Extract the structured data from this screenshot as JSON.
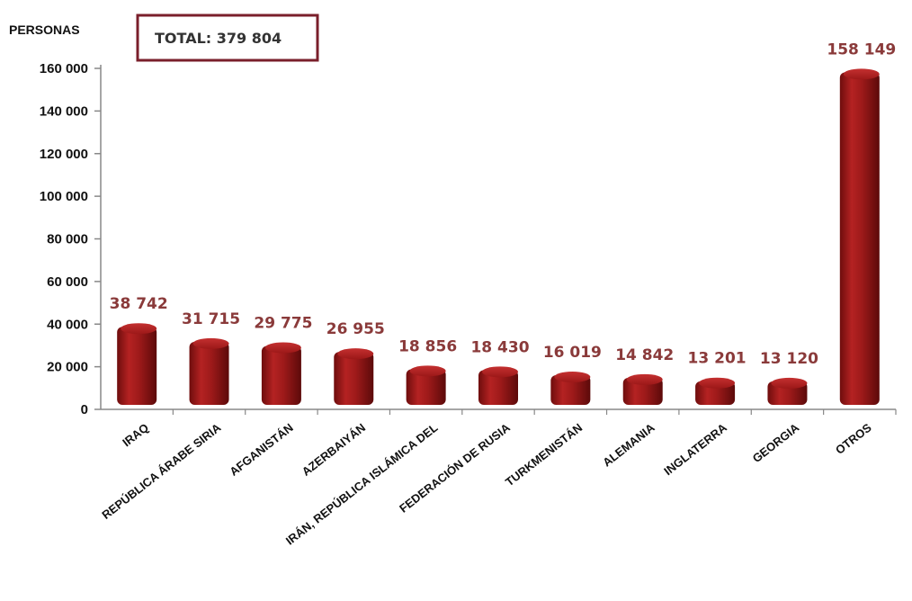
{
  "chart_data": {
    "type": "bar",
    "ylabel": "PERSONAS",
    "annotation": "TOTAL: 379 804",
    "categories": [
      "IRAQ",
      "REPÚBLICA ÁRABE SIRIA",
      "AFGANISTÁN",
      "AZERBAIYÁN",
      "IRÁN, REPÚBLICA ISLÁMICA DEL",
      "FEDERACIÓN DE RUSIA",
      "TURKMENISTÁN",
      "ALEMANIA",
      "INGLATERRA",
      "GEORGIA",
      "OTROS"
    ],
    "values": [
      38742,
      31715,
      29775,
      26955,
      18856,
      18430,
      16019,
      14842,
      13201,
      13120,
      158149
    ],
    "value_labels": [
      "38 742",
      "31 715",
      "29 775",
      "26 955",
      "18 856",
      "18 430",
      "16 019",
      "14 842",
      "13 201",
      "13 120",
      "158 149"
    ],
    "y_ticks": [
      "0",
      "20 000",
      "40 000",
      "60 000",
      "80 000",
      "100 000",
      "120 000",
      "140 000",
      "160 000"
    ],
    "ylim": [
      0,
      160000
    ],
    "grid": false,
    "bar_color": "#9b1b1b",
    "label_color": "#8a3a3a",
    "frame_color": "#7a1f2b"
  }
}
